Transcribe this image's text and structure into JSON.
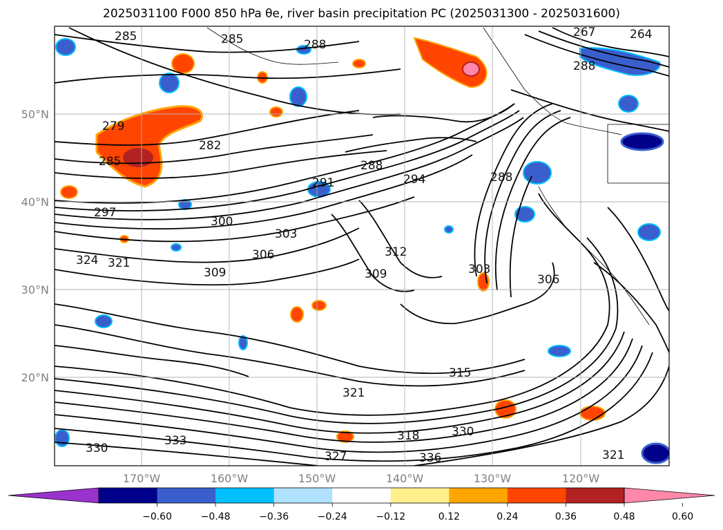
{
  "title": "2025031100 F000 850 hPa θe, river basin precipitation PC (2025031300 - 2025031600)",
  "lat_labels": [
    "50°N",
    "40°N",
    "30°N",
    "20°N"
  ],
  "lon_labels": [
    "170°W",
    "160°W",
    "150°W",
    "140°W",
    "130°W",
    "120°W"
  ],
  "colorbar": {
    "colors": [
      "#9a32cd",
      "#00008b",
      "#3a5fcd",
      "#00bfff",
      "#b0e2ff",
      "#ffffff",
      "#fff08c",
      "#ffa500",
      "#ff4500",
      "#b22222",
      "#ff88aa"
    ],
    "tick_labels": [
      "−0.60",
      "−0.48",
      "−0.36",
      "−0.24",
      "−0.12",
      "0.12",
      "0.24",
      "0.36",
      "0.48",
      "0.60"
    ]
  },
  "contour_labels": [
    "285",
    "285",
    "288",
    "267",
    "264",
    "288",
    "279",
    "282",
    "285",
    "288",
    "294",
    "288",
    "291",
    "300",
    "303",
    "297",
    "306",
    "309",
    "312",
    "309",
    "303",
    "306",
    "324",
    "321",
    "315",
    "321",
    "318",
    "330",
    "333",
    "330",
    "336",
    "327",
    "321"
  ]
}
